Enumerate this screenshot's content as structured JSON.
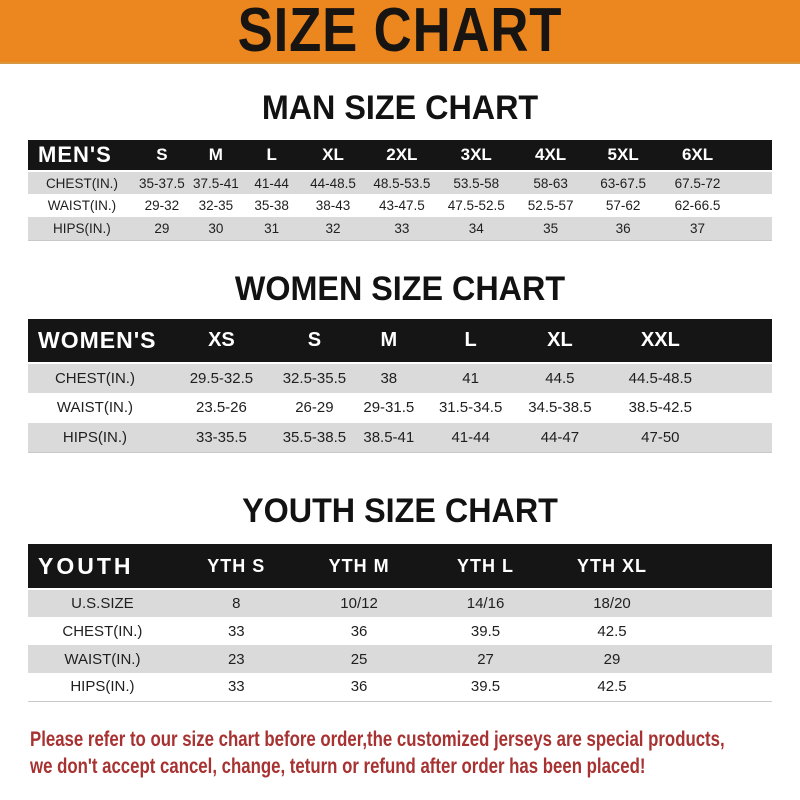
{
  "banner": {
    "title": "SIZE CHART"
  },
  "chart_data": [
    {
      "type": "table",
      "title": "MAN SIZE CHART",
      "corner_label": "MEN'S",
      "columns": [
        "S",
        "M",
        "L",
        "XL",
        "2XL",
        "3XL",
        "4XL",
        "5XL",
        "6XL"
      ],
      "rows": [
        {
          "label": "CHEST(IN.)",
          "values": [
            "35-37.5",
            "37.5-41",
            "41-44",
            "44-48.5",
            "48.5-53.5",
            "53.5-58",
            "58-63",
            "63-67.5",
            "67.5-72"
          ]
        },
        {
          "label": "WAIST(IN.)",
          "values": [
            "29-32",
            "32-35",
            "35-38",
            "38-43",
            "43-47.5",
            "47.5-52.5",
            "52.5-57",
            "57-62",
            "62-66.5"
          ]
        },
        {
          "label": "HIPS(IN.)",
          "values": [
            "29",
            "30",
            "31",
            "32",
            "33",
            "34",
            "35",
            "36",
            "37"
          ]
        }
      ]
    },
    {
      "type": "table",
      "title": "WOMEN SIZE CHART",
      "corner_label": "WOMEN'S",
      "columns": [
        "XS",
        "S",
        "M",
        "L",
        "XL",
        "XXL"
      ],
      "rows": [
        {
          "label": "CHEST(IN.)",
          "values": [
            "29.5-32.5",
            "32.5-35.5",
            "38",
            "41",
            "44.5",
            "44.5-48.5"
          ]
        },
        {
          "label": "WAIST(IN.)",
          "values": [
            "23.5-26",
            "26-29",
            "29-31.5",
            "31.5-34.5",
            "34.5-38.5",
            "38.5-42.5"
          ]
        },
        {
          "label": "HIPS(IN.)",
          "values": [
            "33-35.5",
            "35.5-38.5",
            "38.5-41",
            "41-44",
            "44-47",
            "47-50"
          ]
        }
      ]
    },
    {
      "type": "table",
      "title": "YOUTH SIZE CHART",
      "corner_label": "YOUTH",
      "columns": [
        "YTH S",
        "YTH M",
        "YTH L",
        "YTH XL"
      ],
      "rows": [
        {
          "label": "U.S.SIZE",
          "values": [
            "8",
            "10/12",
            "14/16",
            "18/20"
          ]
        },
        {
          "label": "CHEST(IN.)",
          "values": [
            "33",
            "36",
            "39.5",
            "42.5"
          ]
        },
        {
          "label": "WAIST(IN.)",
          "values": [
            "23",
            "25",
            "27",
            "29"
          ]
        },
        {
          "label": "HIPS(IN.)",
          "values": [
            "33",
            "36",
            "39.5",
            "42.5"
          ]
        }
      ]
    }
  ],
  "footer": {
    "line1": "Please refer to our size chart before order,the customized jerseys are special products,",
    "line2": "we don't accept cancel, change, teturn or refund after order has been placed!"
  },
  "colors": {
    "banner_bg": "#ec861e",
    "banner_text": "#181411",
    "table_header_bg": "#151515",
    "table_header_text": "#ffffff",
    "row_stripe": "#dadada",
    "disclaimer_text": "#a83232"
  }
}
